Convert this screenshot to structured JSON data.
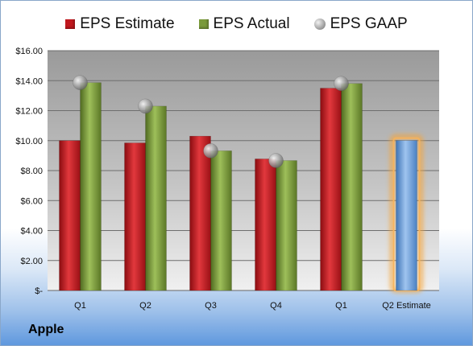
{
  "company": "Apple",
  "chart_data": {
    "type": "bar",
    "categories": [
      "Q1",
      "Q2",
      "Q3",
      "Q4",
      "Q1",
      "Q2 Estimate"
    ],
    "series": [
      {
        "name": "EPS Estimate",
        "type": "bar",
        "color": "#c0181e",
        "values": [
          10.0,
          9.85,
          10.3,
          8.78,
          13.5,
          null
        ]
      },
      {
        "name": "EPS Actual",
        "type": "bar",
        "color": "#7a9a3a",
        "values": [
          13.87,
          12.3,
          9.32,
          8.67,
          13.81,
          null
        ]
      },
      {
        "name": "EPS GAAP",
        "type": "scatter",
        "marker": "sphere",
        "color": "#a0a0a0",
        "values": [
          13.87,
          12.3,
          9.32,
          8.67,
          13.81,
          null
        ]
      },
      {
        "name": "",
        "type": "bar",
        "color": "#6a9fd8",
        "highlight": "orange-glow",
        "values": [
          null,
          null,
          null,
          null,
          null,
          10.01
        ]
      }
    ],
    "yticks": [
      "$-",
      "$2.00",
      "$4.00",
      "$6.00",
      "$8.00",
      "$10.00",
      "$12.00",
      "$14.00",
      "$16.00"
    ],
    "ylim": [
      0,
      16
    ],
    "grid": true,
    "legend_position": "top"
  }
}
